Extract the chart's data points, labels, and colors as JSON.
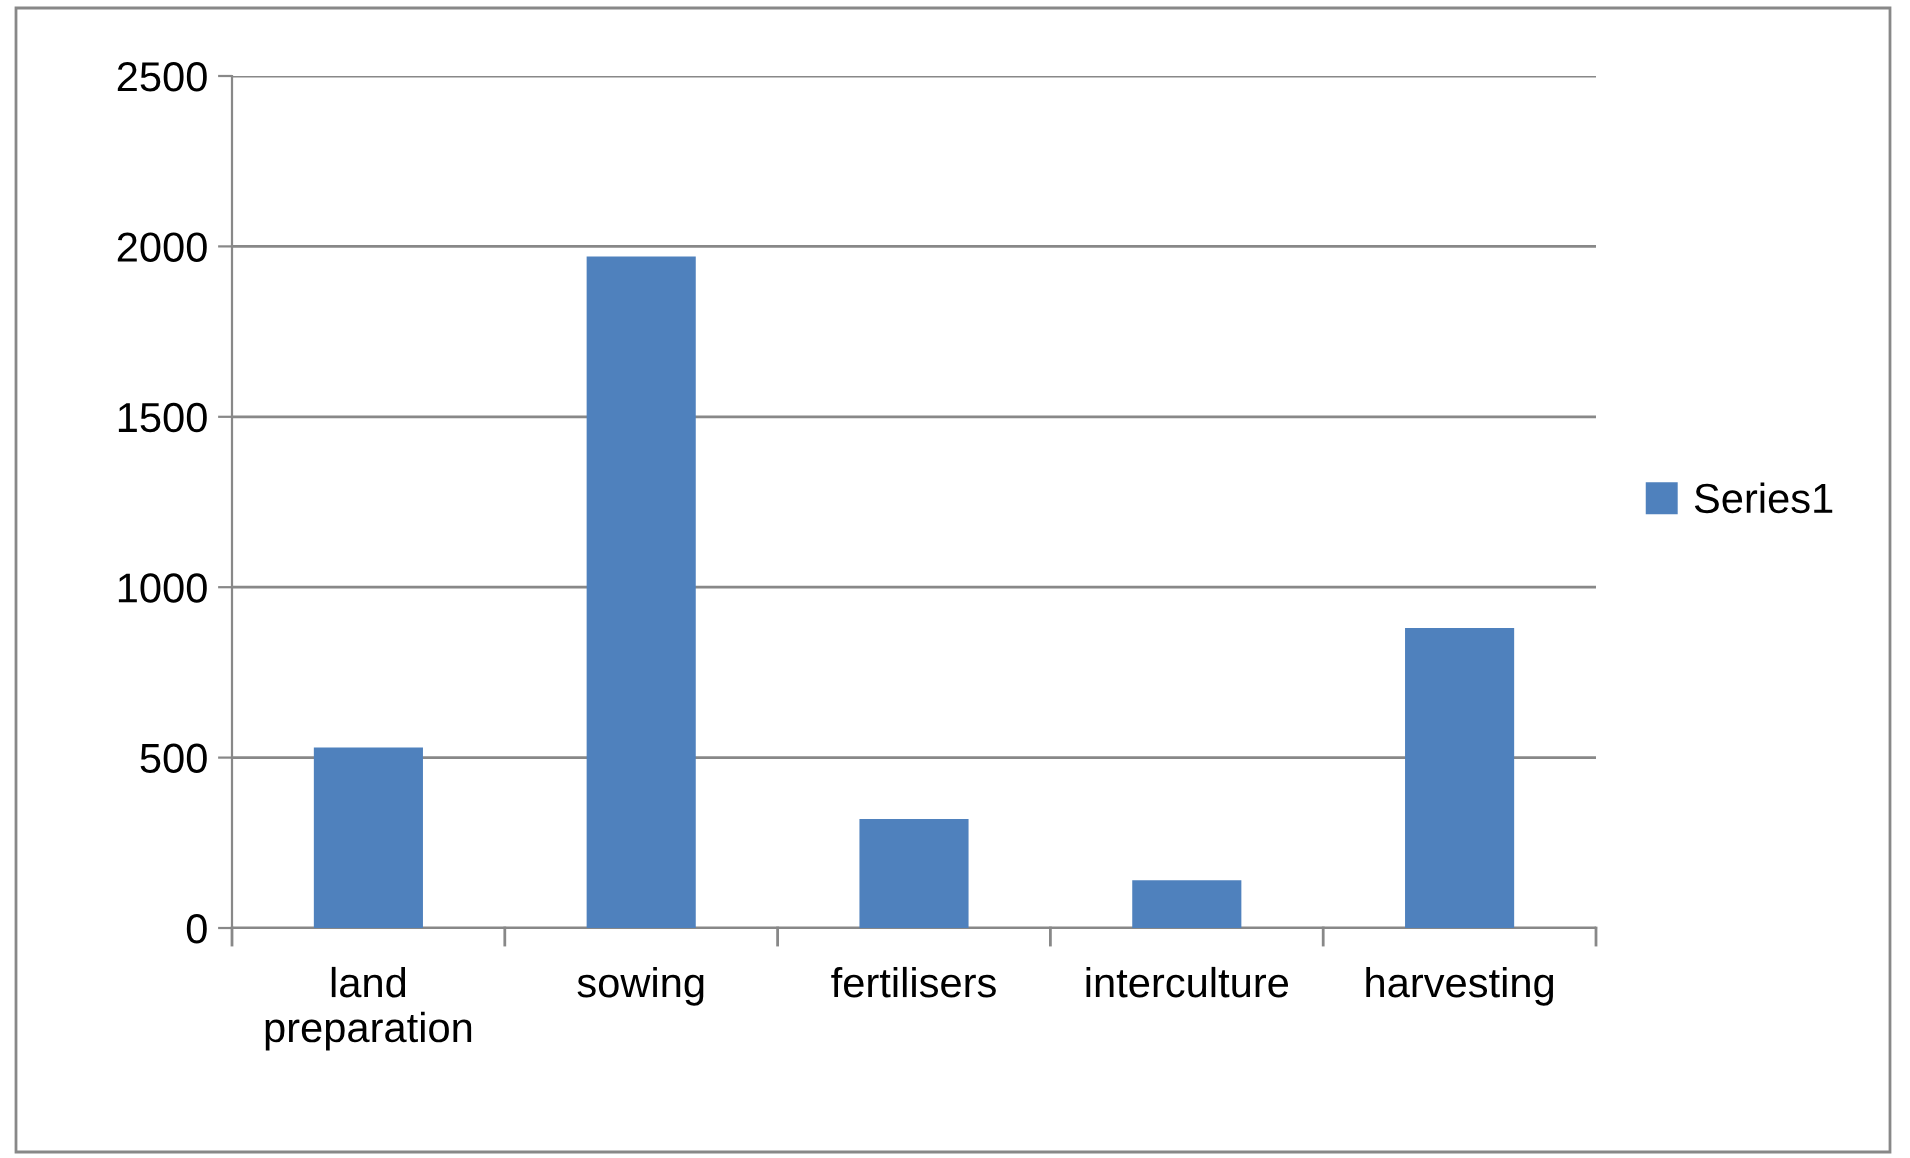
{
  "chart_data": {
    "type": "bar",
    "categories": [
      "land preparation",
      "sowing",
      "fertilisers",
      "interculture",
      "harvesting"
    ],
    "series": [
      {
        "name": "Series1",
        "color": "#4f81bd",
        "values": [
          530,
          1970,
          320,
          140,
          880
        ]
      }
    ],
    "ylim": [
      0,
      2500
    ],
    "yticks": [
      0,
      500,
      1000,
      1500,
      2000,
      2500
    ],
    "grid": "y",
    "legend": "right"
  }
}
